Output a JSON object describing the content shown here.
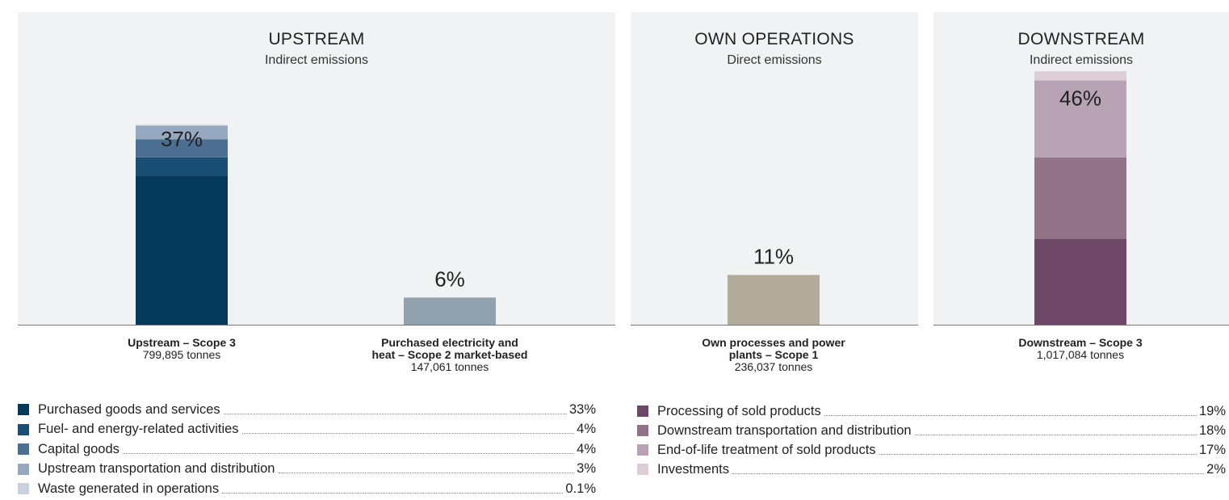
{
  "panels": {
    "upstream": {
      "title": "UPSTREAM",
      "subtitle": "Indirect emissions"
    },
    "own": {
      "title": "OWN OPERATIONS",
      "subtitle": "Direct emissions"
    },
    "downstream": {
      "title": "DOWNSTREAM",
      "subtitle": "Indirect emissions"
    }
  },
  "chart_data": {
    "type": "bar",
    "stacked": true,
    "unit": "%",
    "ylim": [
      0,
      50
    ],
    "grid": false,
    "categories": [
      "Upstream – Scope 3",
      "Purchased electricity and heat – Scope 2 market-based",
      "Own processes and power plants – Scope 1",
      "Downstream – Scope 3"
    ],
    "bars": [
      {
        "id": "upstream-scope3",
        "label": "Upstream – Scope 3",
        "tonnes": "799,895 tonnes",
        "total": 37,
        "total_label": "37%",
        "segments": [
          {
            "name": "Purchased goods and services",
            "value": 33,
            "color": "#04395a"
          },
          {
            "name": "Fuel- and energy-related activities",
            "value": 4,
            "color": "#1a4e73"
          },
          {
            "name": "Capital goods",
            "value": 4,
            "color": "#4b6f91"
          },
          {
            "name": "Upstream transportation and distribution",
            "value": 3,
            "color": "#95a8bf"
          },
          {
            "name": "Waste generated in operations",
            "value": 0.1,
            "color": "#c8d1dd"
          }
        ]
      },
      {
        "id": "scope2",
        "label": "Purchased electricity and\nheat – Scope 2 market-based",
        "tonnes": "147,061 tonnes",
        "total": 6,
        "total_label": "6%",
        "segments": [
          {
            "name": "Scope 2",
            "value": 6,
            "color": "#92a1ae"
          }
        ]
      },
      {
        "id": "scope1",
        "label": "Own processes and power\nplants – Scope 1",
        "tonnes": "236,037 tonnes",
        "total": 11,
        "total_label": "11%",
        "segments": [
          {
            "name": "Scope 1",
            "value": 11,
            "color": "#b2ab9b"
          }
        ]
      },
      {
        "id": "downstream-scope3",
        "label": "Downstream – Scope 3",
        "tonnes": "1,017,084 tonnes",
        "total": 46,
        "total_label": "46%",
        "segments": [
          {
            "name": "Processing of sold products",
            "value": 19,
            "color": "#6e4766"
          },
          {
            "name": "Downstream transportation and distribution",
            "value": 18,
            "color": "#937387"
          },
          {
            "name": "End-of-life treatment of sold products",
            "value": 17,
            "color": "#b8a3b5"
          },
          {
            "name": "Investments",
            "value": 2,
            "color": "#dccdd6"
          }
        ]
      }
    ]
  },
  "legend_upstream": [
    {
      "label": "Purchased goods and services",
      "value": "33%",
      "color": "#04395a"
    },
    {
      "label": "Fuel- and energy-related activities",
      "value": "4%",
      "color": "#1a4e73"
    },
    {
      "label": "Capital goods",
      "value": "4%",
      "color": "#4b6f91"
    },
    {
      "label": "Upstream transportation and distribution",
      "value": "3%",
      "color": "#95a8bf"
    },
    {
      "label": "Waste generated in operations",
      "value": "0.1%",
      "color": "#c8d1dd"
    }
  ],
  "legend_downstream": [
    {
      "label": "Processing of sold products",
      "value": "19%",
      "color": "#6e4766"
    },
    {
      "label": "Downstream transportation and distribution",
      "value": "18%",
      "color": "#937387"
    },
    {
      "label": "End-of-life treatment of sold products",
      "value": "17%",
      "color": "#b8a3b5"
    },
    {
      "label": "Investments",
      "value": "2%",
      "color": "#dccdd6"
    }
  ]
}
